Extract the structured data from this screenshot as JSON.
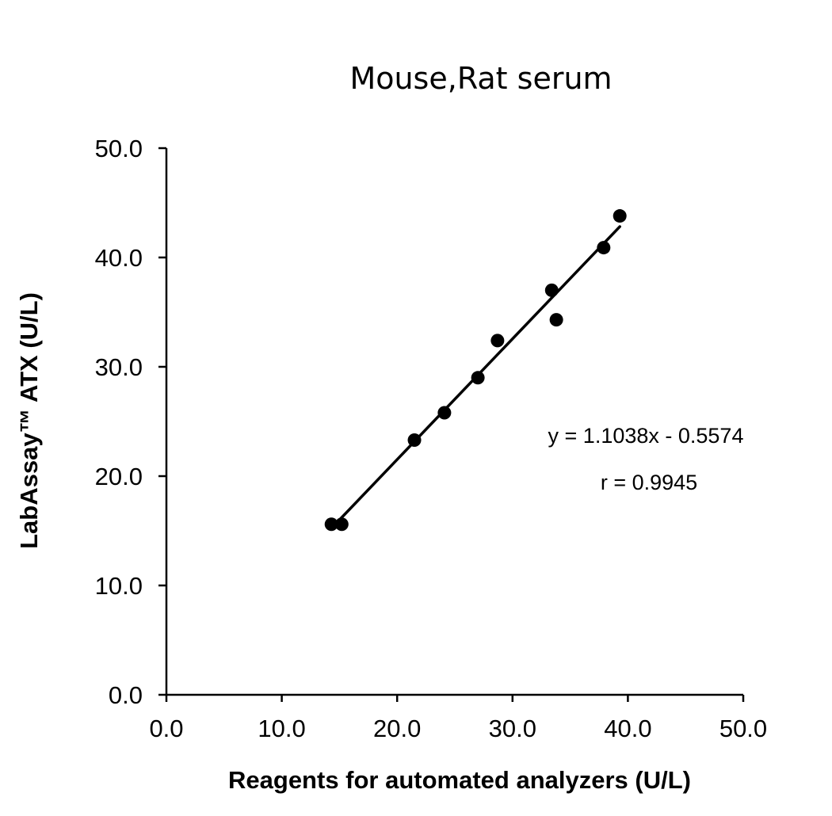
{
  "chart_data": {
    "type": "scatter",
    "title": "Mouse,Rat serum",
    "xlabel": "Reagents for automated analyzers (U/L)",
    "ylabel": "LabAssay™ ATX (U/L)",
    "xlim": [
      0,
      50
    ],
    "ylim": [
      0,
      50
    ],
    "xticks": [
      "0.0",
      "10.0",
      "20.0",
      "30.0",
      "40.0",
      "50.0"
    ],
    "yticks": [
      "0.0",
      "10.0",
      "20.0",
      "30.0",
      "40.0",
      "50.0"
    ],
    "grid": false,
    "points": [
      {
        "x": 14.3,
        "y": 15.6
      },
      {
        "x": 15.2,
        "y": 15.6
      },
      {
        "x": 21.5,
        "y": 23.3
      },
      {
        "x": 24.1,
        "y": 25.8
      },
      {
        "x": 27.0,
        "y": 29.0
      },
      {
        "x": 28.7,
        "y": 32.4
      },
      {
        "x": 33.4,
        "y": 37.0
      },
      {
        "x": 33.8,
        "y": 34.3
      },
      {
        "x": 37.9,
        "y": 40.9
      },
      {
        "x": 39.3,
        "y": 43.8
      }
    ],
    "trendline": {
      "slope": 1.1038,
      "intercept": -0.5574,
      "x_range": [
        14.8,
        39.3
      ]
    },
    "annotations": {
      "equation": "y = 1.1038x - 0.5574",
      "r": "r = 0.9945"
    },
    "colors": {
      "points": "#000000",
      "axes": "#000000"
    }
  }
}
